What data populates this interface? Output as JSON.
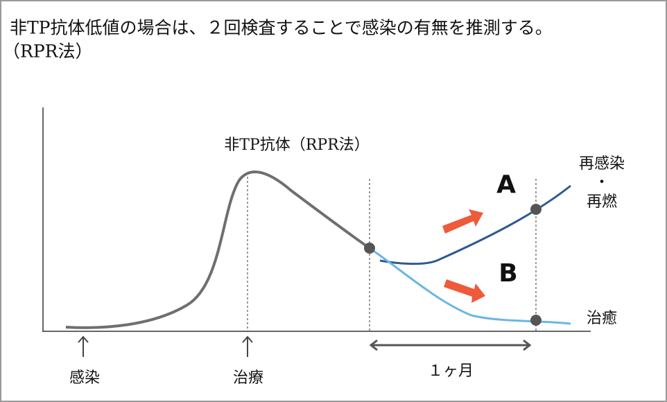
{
  "header": {
    "title": "非TP抗体低値の場合は、２回検査することで感染の有無を推測する。",
    "subtitle": "（RPR法）"
  },
  "diagram": {
    "curve_label": "非TP抗体（RPR法）",
    "label_a": "A",
    "label_b": "B",
    "relapse_label": {
      "line1": "再感染",
      "separator": "・",
      "line2": "再燃"
    },
    "cure_label": "治癒",
    "infection_label": "感染",
    "treatment_label": "治療",
    "period_label": "１ヶ月"
  }
}
